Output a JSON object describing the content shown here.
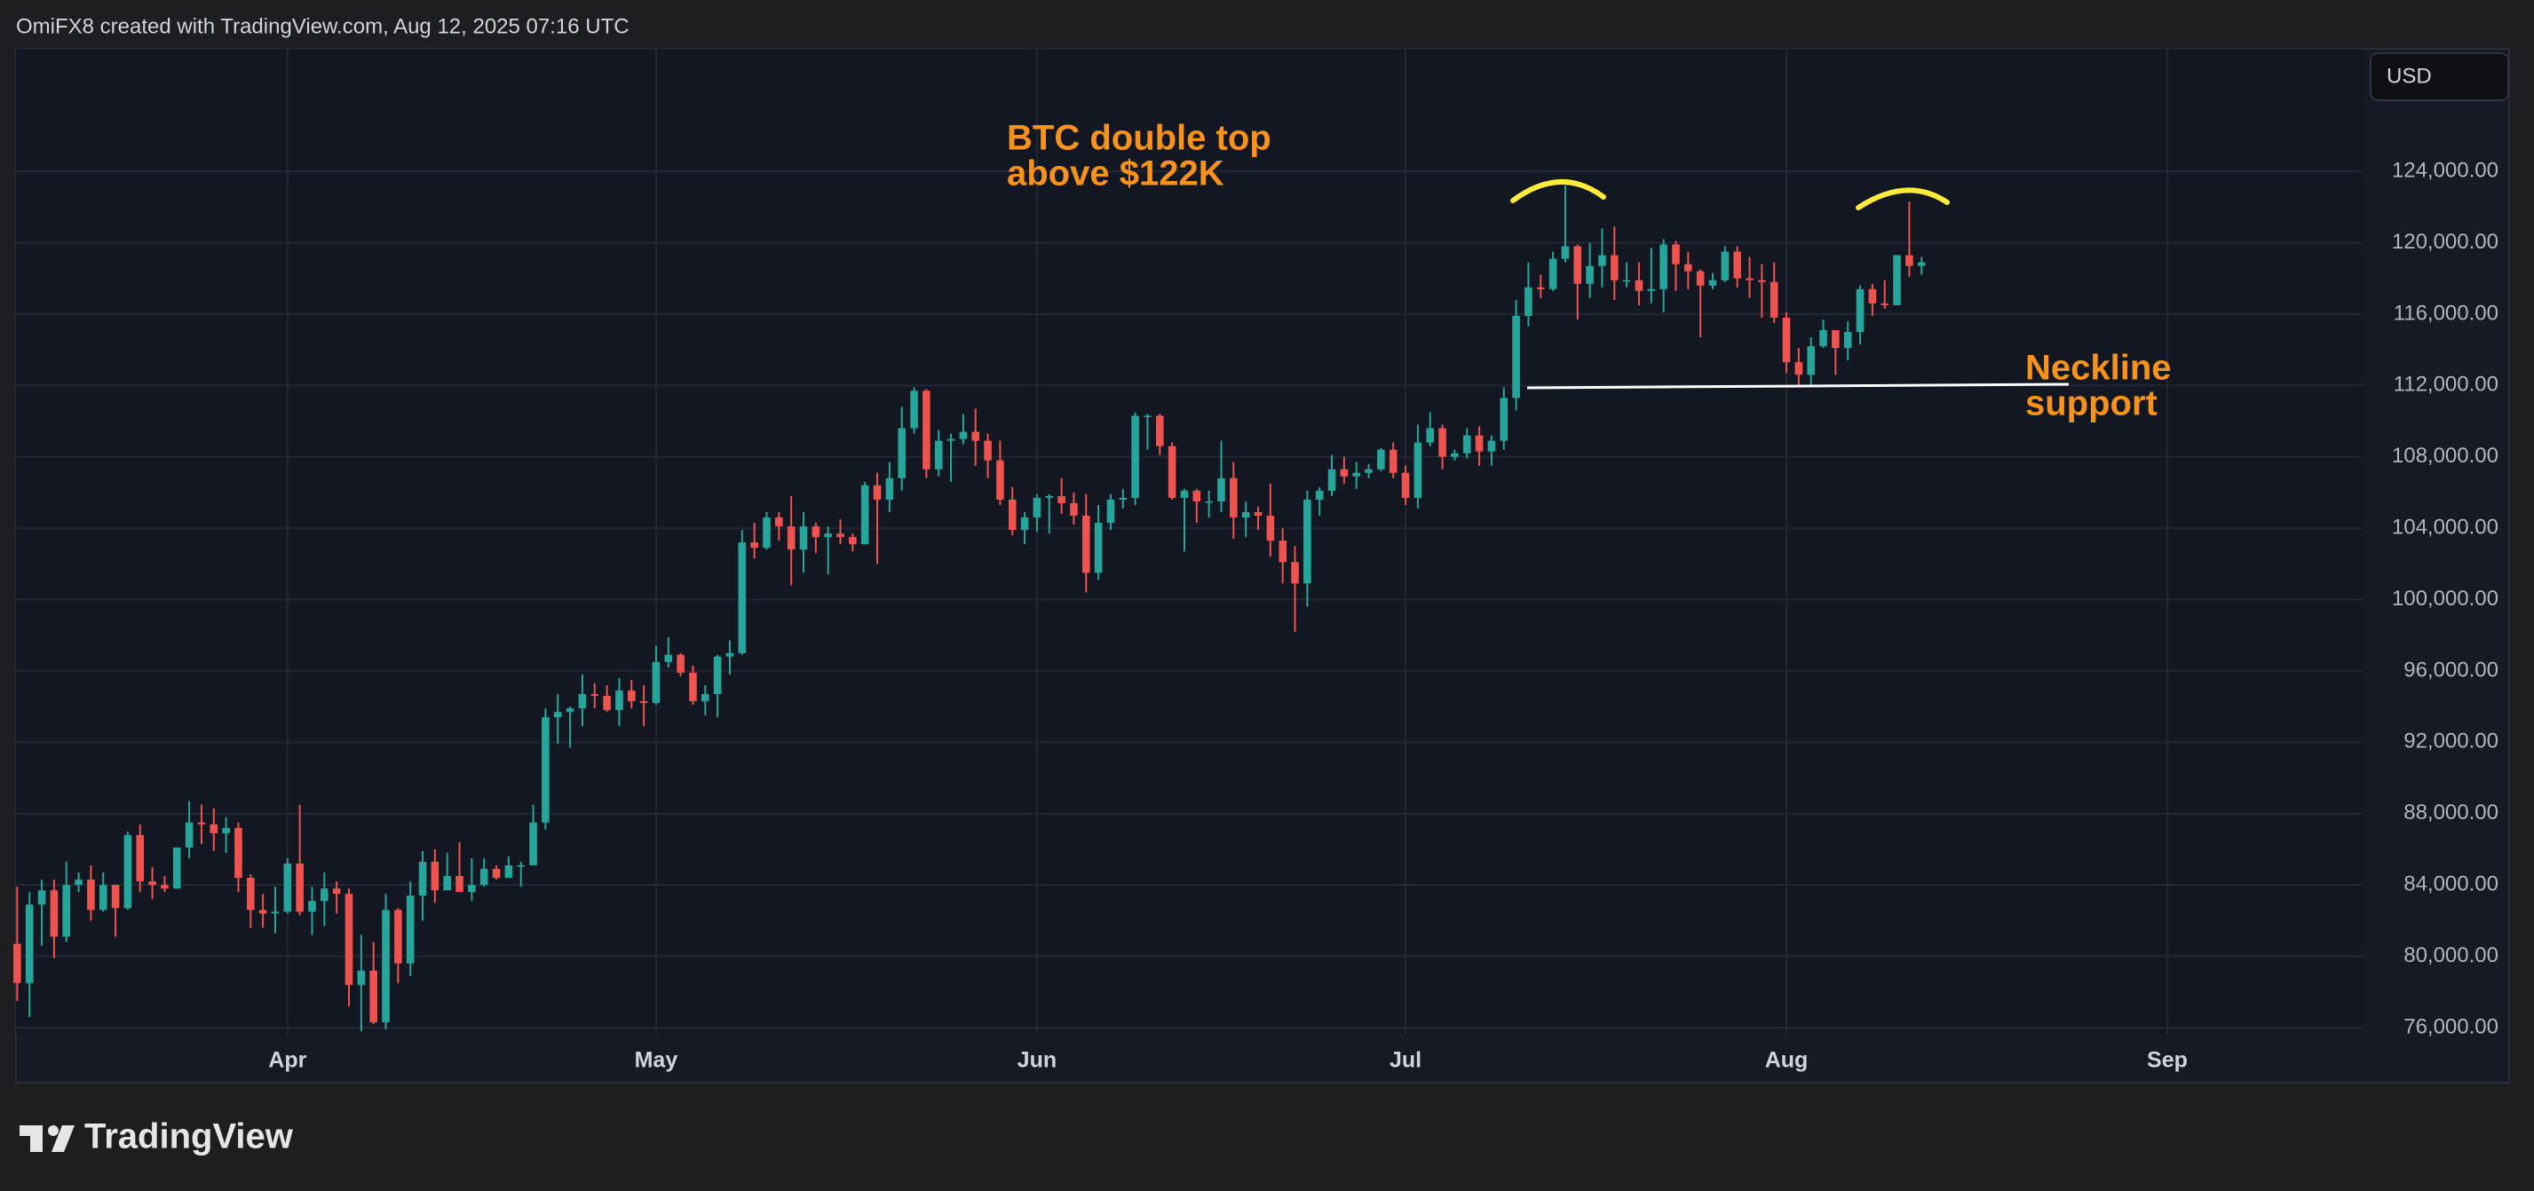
{
  "header": "OmiFX8 created with TradingView.com, Aug 12, 2025 07:16 UTC",
  "currency_button": "USD",
  "logo_text": "TradingView",
  "chart_data": {
    "type": "candlestick",
    "open": [
      80700,
      78500,
      82900,
      83700,
      81100,
      84000,
      84300,
      82600,
      84000,
      82700,
      86800,
      84200,
      84000,
      83800,
      86100,
      87500,
      87400,
      86900,
      87200,
      84400,
      82600,
      82400,
      82500,
      85200,
      82500,
      83100,
      83800,
      83500,
      78400,
      79200,
      76300,
      82600,
      79600,
      83400,
      85300,
      83700,
      84500,
      83600,
      84000,
      84900,
      84400,
      85100,
      85100,
      87500,
      93400,
      93700,
      93900,
      94700,
      94600,
      93800,
      94900,
      94300,
      94200,
      96500,
      96900,
      95900,
      94300,
      94700,
      96800,
      97000,
      103200,
      102900,
      104600,
      104100,
      102800,
      104100,
      103500,
      103700,
      103500,
      103100,
      106400,
      105600,
      106800,
      109600,
      111700,
      107300,
      108900,
      109000,
      109400,
      108900,
      107800,
      105600,
      103900,
      104600,
      105700,
      105800,
      105400,
      104700,
      101500,
      104300,
      105600,
      105700,
      110300,
      110300,
      108600,
      105700,
      106100,
      105500,
      105500,
      106800,
      104600,
      104900,
      104700,
      103300,
      102100,
      100900,
      105600,
      106100,
      107300,
      106900,
      107100,
      107300,
      108400,
      107100,
      105700,
      108800,
      109600,
      108000,
      108200,
      109200,
      108300,
      108900,
      111300,
      115900,
      117500,
      117400,
      119100,
      119800,
      117700,
      118700,
      119300,
      117900,
      117900,
      117300,
      117400,
      119900,
      118800,
      118400,
      117600,
      117900,
      119500,
      118000,
      117900,
      117800,
      115800,
      113300,
      112600,
      114200,
      115100,
      114100,
      115000,
      117400,
      116600,
      116500,
      119300,
      118700
    ],
    "high": [
      83900,
      83600,
      84300,
      84300,
      85300,
      84700,
      85100,
      84700,
      84000,
      87000,
      87400,
      85000,
      84500,
      86100,
      88700,
      88500,
      88300,
      87800,
      87500,
      84600,
      83500,
      83900,
      85500,
      88500,
      83900,
      84700,
      84200,
      83800,
      81200,
      80800,
      83500,
      82700,
      84200,
      85900,
      86000,
      85800,
      86400,
      85500,
      85500,
      85100,
      85600,
      85300,
      88500,
      93900,
      94700,
      94000,
      95800,
      95300,
      95200,
      95600,
      95500,
      95200,
      97400,
      97900,
      97000,
      96300,
      95200,
      96900,
      97700,
      103900,
      104300,
      104900,
      104900,
      105800,
      104900,
      104300,
      104100,
      104500,
      103700,
      106600,
      107100,
      107700,
      110800,
      111900,
      111800,
      109500,
      109300,
      110400,
      110700,
      109300,
      108900,
      106300,
      104900,
      105900,
      105900,
      106800,
      106000,
      105900,
      105300,
      105900,
      106200,
      110500,
      110400,
      110400,
      108800,
      106200,
      106200,
      106100,
      108900,
      107700,
      105500,
      105200,
      106500,
      104000,
      103000,
      106100,
      106300,
      108100,
      108000,
      107700,
      107600,
      108500,
      108800,
      107500,
      109800,
      110500,
      109800,
      108400,
      109600,
      109700,
      109200,
      111900,
      116800,
      118900,
      118200,
      119500,
      123200,
      119900,
      120000,
      120800,
      120900,
      118900,
      118900,
      119700,
      120200,
      120100,
      119500,
      118500,
      118300,
      119800,
      119800,
      119200,
      118800,
      118900,
      116100,
      114100,
      114700,
      115700,
      115100,
      115600,
      117600,
      117700,
      117900,
      119300,
      122300,
      119200
    ],
    "low": [
      77500,
      76600,
      80600,
      79900,
      80800,
      83600,
      82000,
      82500,
      81100,
      82600,
      83600,
      83200,
      83600,
      83800,
      85500,
      86300,
      85900,
      85800,
      83600,
      81600,
      81600,
      81300,
      82400,
      82300,
      81200,
      81700,
      82400,
      77200,
      75800,
      76200,
      75900,
      78500,
      78900,
      82000,
      83000,
      83700,
      83600,
      83100,
      83900,
      84300,
      84400,
      83900,
      85100,
      87100,
      91900,
      91700,
      92900,
      93900,
      93700,
      92900,
      93900,
      92900,
      94100,
      96200,
      95700,
      94100,
      93500,
      93400,
      95800,
      96900,
      102300,
      102800,
      103300,
      100800,
      101500,
      102600,
      101400,
      103100,
      102700,
      103100,
      102000,
      104900,
      106100,
      109300,
      106800,
      106900,
      106600,
      108700,
      107500,
      106800,
      105300,
      103600,
      103100,
      103800,
      103700,
      104800,
      104200,
      100400,
      101100,
      103900,
      105100,
      105300,
      108400,
      108100,
      105600,
      102700,
      104300,
      104600,
      104900,
      103400,
      103500,
      103900,
      102400,
      100900,
      98200,
      99600,
      104700,
      105800,
      106500,
      106200,
      106800,
      107200,
      106800,
      105300,
      105100,
      108600,
      107300,
      107800,
      107900,
      107500,
      107500,
      108400,
      110600,
      115300,
      116900,
      117300,
      118900,
      115700,
      116900,
      117500,
      116800,
      117500,
      116500,
      116600,
      116100,
      117300,
      117400,
      114700,
      117400,
      117800,
      117500,
      116900,
      115800,
      115500,
      112700,
      112000,
      111900,
      114100,
      112600,
      113400,
      114300,
      115900,
      116300,
      116500,
      118100,
      118200
    ],
    "close": [
      78500,
      82900,
      83700,
      81100,
      84000,
      84300,
      82600,
      84000,
      82700,
      86800,
      84200,
      84000,
      83800,
      86100,
      87500,
      87400,
      86900,
      87200,
      84400,
      82600,
      82400,
      82500,
      85200,
      82500,
      83100,
      83800,
      83500,
      78400,
      79200,
      76300,
      82600,
      79600,
      83400,
      85300,
      83700,
      84500,
      83600,
      84000,
      84900,
      84400,
      85100,
      85100,
      87500,
      93400,
      93700,
      93900,
      94700,
      94600,
      93800,
      94900,
      94300,
      94200,
      96500,
      96900,
      95900,
      94300,
      94700,
      96800,
      97000,
      103200,
      102900,
      104600,
      104100,
      102800,
      104100,
      103500,
      103700,
      103500,
      103100,
      106400,
      105600,
      106800,
      109600,
      111700,
      107300,
      108900,
      109000,
      109400,
      108900,
      107800,
      105600,
      103900,
      104600,
      105700,
      105800,
      105400,
      104700,
      101500,
      104300,
      105600,
      105700,
      110300,
      110300,
      108600,
      105700,
      106100,
      105500,
      105500,
      106800,
      104600,
      104900,
      104700,
      103300,
      102100,
      100900,
      105600,
      106100,
      107300,
      106900,
      107100,
      107300,
      108400,
      107100,
      105700,
      108800,
      109600,
      108000,
      108200,
      109200,
      108300,
      108900,
      111300,
      115900,
      117500,
      117400,
      119100,
      119800,
      117700,
      118700,
      119300,
      117900,
      117900,
      117300,
      117400,
      119900,
      118800,
      118400,
      117600,
      117900,
      119500,
      118000,
      117900,
      117800,
      115800,
      113300,
      112600,
      114200,
      115100,
      114100,
      115000,
      117400,
      116600,
      116500,
      119300,
      118700,
      118900
    ],
    "up_color": "#26a69a",
    "down_color": "#ef5350",
    "xlim": [
      -0.1,
      190.9
    ],
    "xticks": [
      {
        "value": 22,
        "label": "Apr"
      },
      {
        "value": 52,
        "label": "May"
      },
      {
        "value": 83,
        "label": "Jun"
      },
      {
        "value": 113,
        "label": "Jul"
      },
      {
        "value": 144,
        "label": "Aug"
      },
      {
        "value": 175,
        "label": "Sep"
      }
    ],
    "ylim": [
      75650,
      130870
    ],
    "yticks": [
      {
        "value": 76000,
        "label": "76,000.00"
      },
      {
        "value": 80000,
        "label": "80,000.00"
      },
      {
        "value": 84000,
        "label": "84,000.00"
      },
      {
        "value": 88000,
        "label": "88,000.00"
      },
      {
        "value": 92000,
        "label": "92,000.00"
      },
      {
        "value": 96000,
        "label": "96,000.00"
      },
      {
        "value": 100000,
        "label": "100,000.00"
      },
      {
        "value": 104000,
        "label": "104,000.00"
      },
      {
        "value": 108000,
        "label": "108,000.00"
      },
      {
        "value": 112000,
        "label": "112,000.00"
      },
      {
        "value": 116000,
        "label": "116,000.00"
      },
      {
        "value": 120000,
        "label": "120,000.00"
      },
      {
        "value": 124000,
        "label": "124,000.00"
      }
    ],
    "grid": true,
    "annotations": [
      {
        "lines": [
          "BTC double top",
          "above $122K"
        ],
        "color": "#f7931a"
      },
      {
        "lines": [
          "Neckline",
          "support"
        ],
        "color": "#f7931a"
      }
    ]
  }
}
